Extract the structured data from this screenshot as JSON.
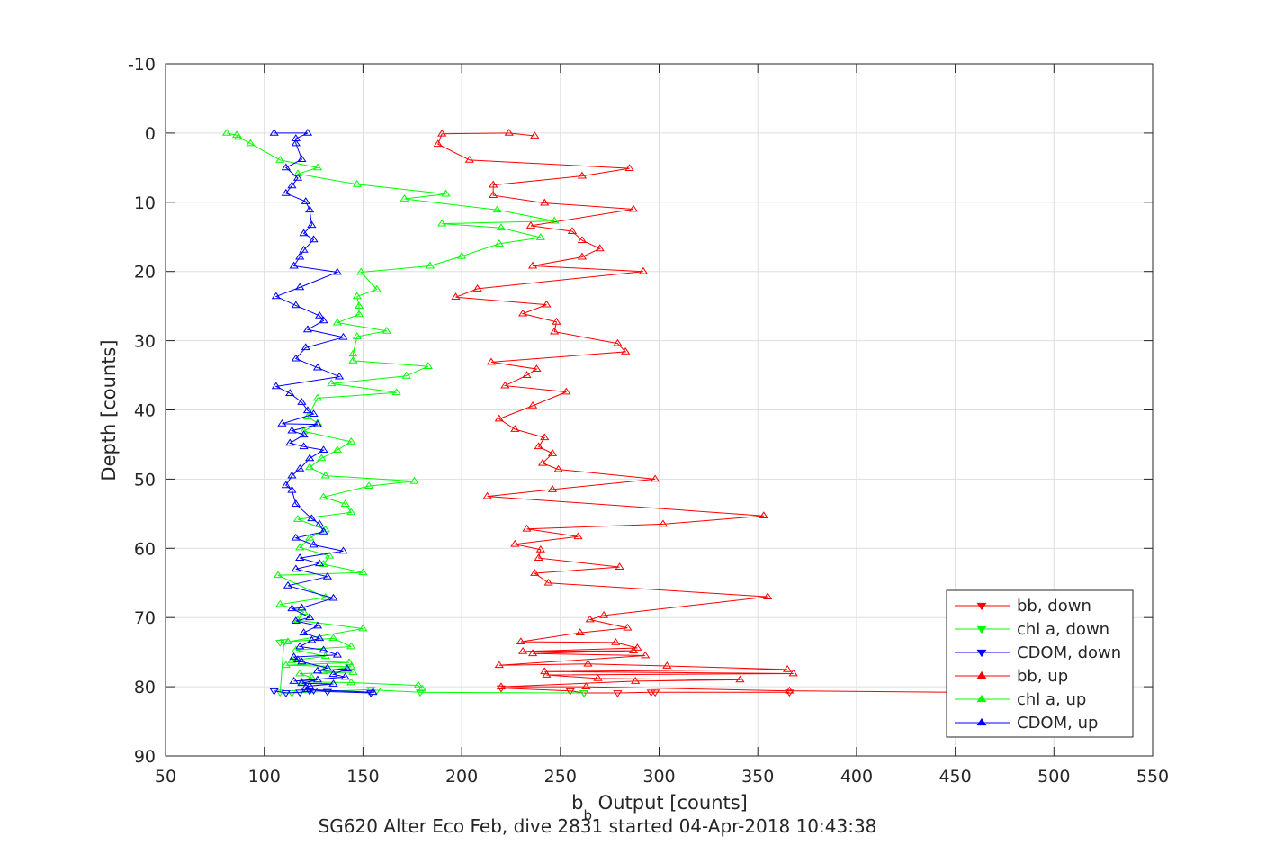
{
  "figure": {
    "title": "",
    "caption": "SG620 Alter Eco Feb, dive 2831 started 04-Apr-2018 10:43:38"
  },
  "chart_data": {
    "type": "line",
    "xlabel_main": "b",
    "xlabel_sub": "b",
    "xlabel_rest": " Output [counts]",
    "ylabel": "Depth [counts]",
    "xlim": [
      50,
      550
    ],
    "ylim": [
      -10,
      90
    ],
    "y_reversed": true,
    "x_ticks": [
      50,
      100,
      150,
      200,
      250,
      300,
      350,
      400,
      450,
      500,
      550
    ],
    "y_ticks": [
      -10,
      0,
      10,
      20,
      30,
      40,
      50,
      60,
      70,
      80,
      90
    ],
    "grid": true,
    "legend_position": "bottom-right",
    "series": [
      {
        "name": "bb, down",
        "color": "#ff0000",
        "marker": "triangle-down",
        "points": [
          [
            366,
            80.8
          ],
          [
            298,
            80.8
          ],
          [
            296,
            80.8
          ],
          [
            279,
            80.9
          ],
          [
            262,
            80.9
          ],
          [
            255,
            80.6
          ],
          [
            220,
            80.2
          ]
        ]
      },
      {
        "name": "chl a, down",
        "color": "#00ff00",
        "marker": "triangle-down",
        "points": [
          [
            262,
            80.9
          ],
          [
            179,
            80.8
          ],
          [
            157,
            80.5
          ],
          [
            154,
            80.4
          ],
          [
            114,
            80.9
          ],
          [
            108,
            80.8
          ],
          [
            110,
            73.5
          ],
          [
            108,
            73.6
          ]
        ]
      },
      {
        "name": "CDOM, down",
        "color": "#0000ff",
        "marker": "triangle-down",
        "points": [
          [
            154,
            80.9
          ],
          [
            132,
            80.7
          ],
          [
            125,
            80.5
          ],
          [
            123,
            80.6
          ],
          [
            118,
            80.8
          ],
          [
            111,
            80.9
          ],
          [
            105,
            80.6
          ]
        ]
      },
      {
        "name": "bb, up",
        "color": "#ff0000",
        "marker": "triangle-up",
        "points": [
          [
            450,
            80.8
          ],
          [
            366,
            80.6
          ],
          [
            263,
            80.0
          ],
          [
            220,
            80.0
          ],
          [
            288,
            79.2
          ],
          [
            341,
            79.0
          ],
          [
            269,
            78.8
          ],
          [
            243,
            78.3
          ],
          [
            368,
            78.1
          ],
          [
            242,
            77.8
          ],
          [
            365,
            77.5
          ],
          [
            304,
            77.0
          ],
          [
            264,
            76.7
          ],
          [
            219,
            76.9
          ],
          [
            293,
            75.5
          ],
          [
            236,
            75.2
          ],
          [
            287,
            74.8
          ],
          [
            231,
            74.9
          ],
          [
            289,
            74.4
          ],
          [
            278,
            73.6
          ],
          [
            230,
            73.5
          ],
          [
            260,
            72.2
          ],
          [
            284,
            71.5
          ],
          [
            265,
            70.3
          ],
          [
            272,
            69.7
          ],
          [
            355,
            67.0
          ],
          [
            244,
            65.0
          ],
          [
            237,
            63.6
          ],
          [
            280,
            62.7
          ],
          [
            239,
            61.4
          ],
          [
            240,
            60.2
          ],
          [
            227,
            59.4
          ],
          [
            259,
            58.3
          ],
          [
            233,
            57.2
          ],
          [
            302,
            56.5
          ],
          [
            353,
            55.3
          ],
          [
            213,
            52.5
          ],
          [
            246,
            51.5
          ],
          [
            298,
            50.0
          ],
          [
            249,
            48.6
          ],
          [
            241,
            47.7
          ],
          [
            246,
            46.3
          ],
          [
            239,
            45.3
          ],
          [
            242,
            44.0
          ],
          [
            227,
            42.8
          ],
          [
            219,
            41.3
          ],
          [
            236,
            39.4
          ],
          [
            253,
            37.4
          ],
          [
            222,
            36.5
          ],
          [
            233,
            35.0
          ],
          [
            238,
            34.1
          ],
          [
            215,
            33.1
          ],
          [
            283,
            31.6
          ],
          [
            279,
            30.4
          ],
          [
            247,
            28.7
          ],
          [
            248,
            27.3
          ],
          [
            231,
            26.1
          ],
          [
            243,
            24.8
          ],
          [
            197,
            23.7
          ],
          [
            208,
            22.5
          ],
          [
            292,
            20.0
          ],
          [
            236,
            19.2
          ],
          [
            261,
            17.9
          ],
          [
            270,
            16.7
          ],
          [
            261,
            15.5
          ],
          [
            256,
            14.2
          ],
          [
            235,
            13.4
          ],
          [
            287,
            11.0
          ],
          [
            242,
            10.1
          ],
          [
            216,
            9.0
          ],
          [
            216,
            7.5
          ],
          [
            261,
            6.2
          ],
          [
            285,
            5.1
          ],
          [
            204,
            3.9
          ],
          [
            188,
            1.6
          ],
          [
            190,
            0.1
          ],
          [
            224,
            0.0
          ],
          [
            237,
            0.4
          ]
        ]
      },
      {
        "name": "chl a, up",
        "color": "#00ff00",
        "marker": "triangle-up",
        "points": [
          [
            180,
            80.3
          ],
          [
            178,
            79.8
          ],
          [
            144,
            79.4
          ],
          [
            119,
            79.3
          ],
          [
            124,
            78.7
          ],
          [
            118,
            78.1
          ],
          [
            145,
            77.9
          ],
          [
            130,
            77.8
          ],
          [
            144,
            77.1
          ],
          [
            111,
            76.9
          ],
          [
            143,
            76.5
          ],
          [
            114,
            76.2
          ],
          [
            131,
            75.6
          ],
          [
            116,
            74.7
          ],
          [
            144,
            74.2
          ],
          [
            135,
            73.0
          ],
          [
            112,
            73.5
          ],
          [
            150,
            71.6
          ],
          [
            117,
            70.4
          ],
          [
            120,
            69.2
          ],
          [
            108,
            68.1
          ],
          [
            131,
            67.1
          ],
          [
            107,
            63.9
          ],
          [
            150,
            63.5
          ],
          [
            130,
            62.3
          ],
          [
            133,
            61.1
          ],
          [
            118,
            59.9
          ],
          [
            123,
            58.5
          ],
          [
            131,
            57.3
          ],
          [
            117,
            55.8
          ],
          [
            144,
            54.8
          ],
          [
            141,
            53.6
          ],
          [
            130,
            52.6
          ],
          [
            153,
            51.0
          ],
          [
            176,
            50.3
          ],
          [
            131,
            49.5
          ],
          [
            123,
            48.3
          ],
          [
            129,
            47.0
          ],
          [
            137,
            45.8
          ],
          [
            144,
            44.6
          ],
          [
            120,
            43.1
          ],
          [
            127,
            41.9
          ],
          [
            122,
            41.0
          ],
          [
            127,
            38.3
          ],
          [
            167,
            37.5
          ],
          [
            134,
            36.2
          ],
          [
            172,
            35.1
          ],
          [
            183,
            33.7
          ],
          [
            145,
            32.9
          ],
          [
            145,
            31.9
          ],
          [
            147,
            29.4
          ],
          [
            162,
            28.6
          ],
          [
            137,
            27.4
          ],
          [
            148,
            26.2
          ],
          [
            148,
            25.0
          ],
          [
            147,
            23.6
          ],
          [
            157,
            22.6
          ],
          [
            149,
            20.1
          ],
          [
            184,
            19.2
          ],
          [
            200,
            17.8
          ],
          [
            219,
            16.0
          ],
          [
            240,
            15.1
          ],
          [
            220,
            13.7
          ],
          [
            190,
            13.1
          ],
          [
            247,
            12.7
          ],
          [
            218,
            11.1
          ],
          [
            171,
            9.5
          ],
          [
            192,
            8.8
          ],
          [
            147,
            7.4
          ],
          [
            117,
            5.9
          ],
          [
            127,
            5.0
          ],
          [
            108,
            3.9
          ],
          [
            93,
            1.5
          ],
          [
            87,
            0.6
          ],
          [
            86,
            0.3
          ],
          [
            81,
            0.0
          ]
        ]
      },
      {
        "name": "CDOM, up",
        "color": "#0000ff",
        "marker": "triangle-up",
        "points": [
          [
            155,
            80.8
          ],
          [
            122,
            80.4
          ],
          [
            121,
            80.1
          ],
          [
            123,
            79.9
          ],
          [
            135,
            79.6
          ],
          [
            119,
            79.5
          ],
          [
            127,
            79.0
          ],
          [
            115,
            79.2
          ],
          [
            141,
            78.6
          ],
          [
            135,
            78.2
          ],
          [
            142,
            77.4
          ],
          [
            127,
            77.7
          ],
          [
            132,
            77.3
          ],
          [
            119,
            76.4
          ],
          [
            117,
            76.1
          ],
          [
            115,
            75.7
          ],
          [
            137,
            75.4
          ],
          [
            130,
            74.7
          ],
          [
            118,
            74.2
          ],
          [
            124,
            73.3
          ],
          [
            128,
            73.0
          ],
          [
            120,
            72.2
          ],
          [
            127,
            71.2
          ],
          [
            116,
            70.5
          ],
          [
            123,
            70.0
          ],
          [
            114,
            68.7
          ],
          [
            119,
            68.6
          ],
          [
            135,
            67.2
          ],
          [
            112,
            65.4
          ],
          [
            132,
            64.1
          ],
          [
            116,
            63.0
          ],
          [
            128,
            62.2
          ],
          [
            118,
            61.4
          ],
          [
            140,
            60.4
          ],
          [
            125,
            59.5
          ],
          [
            116,
            58.5
          ],
          [
            130,
            57.6
          ],
          [
            128,
            56.5
          ],
          [
            124,
            55.7
          ],
          [
            116,
            53.6
          ],
          [
            114,
            51.6
          ],
          [
            111,
            50.9
          ],
          [
            114,
            49.5
          ],
          [
            118,
            48.5
          ],
          [
            123,
            47.0
          ],
          [
            130,
            45.8
          ],
          [
            120,
            45.3
          ],
          [
            113,
            44.8
          ],
          [
            120,
            43.6
          ],
          [
            114,
            43.0
          ],
          [
            127,
            42.1
          ],
          [
            109,
            42.0
          ],
          [
            125,
            40.6
          ],
          [
            122,
            40.1
          ],
          [
            119,
            38.9
          ],
          [
            113,
            37.6
          ],
          [
            106,
            36.6
          ],
          [
            138,
            35.2
          ],
          [
            127,
            33.9
          ],
          [
            116,
            32.6
          ],
          [
            121,
            31.0
          ],
          [
            140,
            29.5
          ],
          [
            122,
            28.4
          ],
          [
            130,
            27.1
          ],
          [
            128,
            26.4
          ],
          [
            116,
            24.9
          ],
          [
            106,
            23.6
          ],
          [
            118,
            22.3
          ],
          [
            137,
            20.1
          ],
          [
            115,
            19.2
          ],
          [
            118,
            17.9
          ],
          [
            120,
            16.9
          ],
          [
            125,
            15.4
          ],
          [
            120,
            14.5
          ],
          [
            124,
            13.3
          ],
          [
            123,
            11.1
          ],
          [
            121,
            9.9
          ],
          [
            111,
            8.7
          ],
          [
            114,
            7.6
          ],
          [
            117,
            6.5
          ],
          [
            111,
            5.0
          ],
          [
            119,
            3.8
          ],
          [
            116,
            1.5
          ],
          [
            116,
            0.8
          ],
          [
            122,
            0.0
          ],
          [
            105,
            0.0
          ]
        ]
      }
    ]
  }
}
